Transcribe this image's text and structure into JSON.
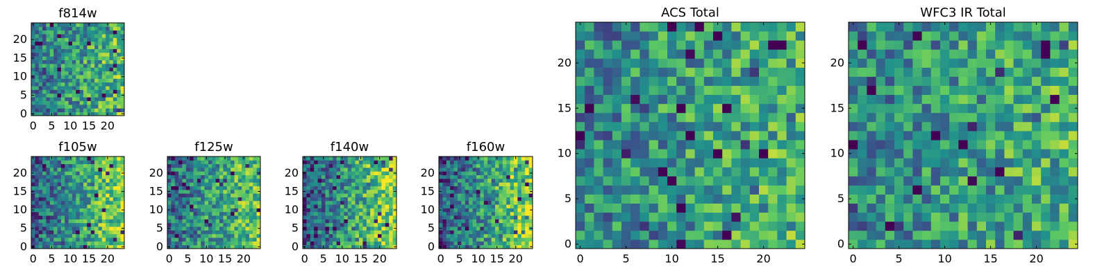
{
  "figure": {
    "colormap": "viridis",
    "colors": [
      "#440154",
      "#3b528b",
      "#21918c",
      "#5ec962",
      "#fde725"
    ]
  },
  "chart_data": [
    {
      "type": "heatmap",
      "title": "f814w",
      "xlabel": "",
      "ylabel": "",
      "size": 25,
      "xlim": [
        0,
        24
      ],
      "ylim": [
        0,
        24
      ],
      "xticks": [
        0,
        5,
        10,
        15,
        20
      ],
      "yticks": [
        0,
        5,
        10,
        15,
        20
      ],
      "trend": 0.45
    },
    {
      "type": "heatmap",
      "title": "f105w",
      "xlabel": "",
      "ylabel": "",
      "size": 25,
      "xlim": [
        0,
        24
      ],
      "ylim": [
        0,
        24
      ],
      "xticks": [
        0,
        5,
        10,
        15,
        20
      ],
      "yticks": [
        0,
        5,
        10,
        15,
        20
      ],
      "trend": 0.75
    },
    {
      "type": "heatmap",
      "title": "f125w",
      "xlabel": "",
      "ylabel": "",
      "size": 25,
      "xlim": [
        0,
        24
      ],
      "ylim": [
        0,
        24
      ],
      "xticks": [
        0,
        5,
        10,
        15,
        20
      ],
      "yticks": [
        0,
        5,
        10,
        15,
        20
      ],
      "trend": 0.55
    },
    {
      "type": "heatmap",
      "title": "f140w",
      "xlabel": "",
      "ylabel": "",
      "size": 25,
      "xlim": [
        0,
        24
      ],
      "ylim": [
        0,
        24
      ],
      "xticks": [
        0,
        5,
        10,
        15,
        20
      ],
      "yticks": [
        0,
        5,
        10,
        15,
        20
      ],
      "trend": 0.85
    },
    {
      "type": "heatmap",
      "title": "f160w",
      "xlabel": "",
      "ylabel": "",
      "size": 25,
      "xlim": [
        0,
        24
      ],
      "ylim": [
        0,
        24
      ],
      "xticks": [
        0,
        5,
        10,
        15,
        20
      ],
      "yticks": [
        0,
        5,
        10,
        15,
        20
      ],
      "trend": 0.85
    },
    {
      "type": "heatmap",
      "title": "ACS Total",
      "xlabel": "",
      "ylabel": "",
      "size": 25,
      "xlim": [
        0,
        24
      ],
      "ylim": [
        0,
        24
      ],
      "xticks": [
        0,
        5,
        10,
        15,
        20
      ],
      "yticks": [
        0,
        5,
        10,
        15,
        20
      ],
      "trend": 0.3
    },
    {
      "type": "heatmap",
      "title": "WFC3 IR Total",
      "xlabel": "",
      "ylabel": "",
      "size": 25,
      "xlim": [
        0,
        24
      ],
      "ylim": [
        0,
        24
      ],
      "xticks": [
        0,
        5,
        10,
        15,
        20
      ],
      "yticks": [
        0,
        5,
        10,
        15,
        20
      ],
      "trend": 0.3
    }
  ]
}
